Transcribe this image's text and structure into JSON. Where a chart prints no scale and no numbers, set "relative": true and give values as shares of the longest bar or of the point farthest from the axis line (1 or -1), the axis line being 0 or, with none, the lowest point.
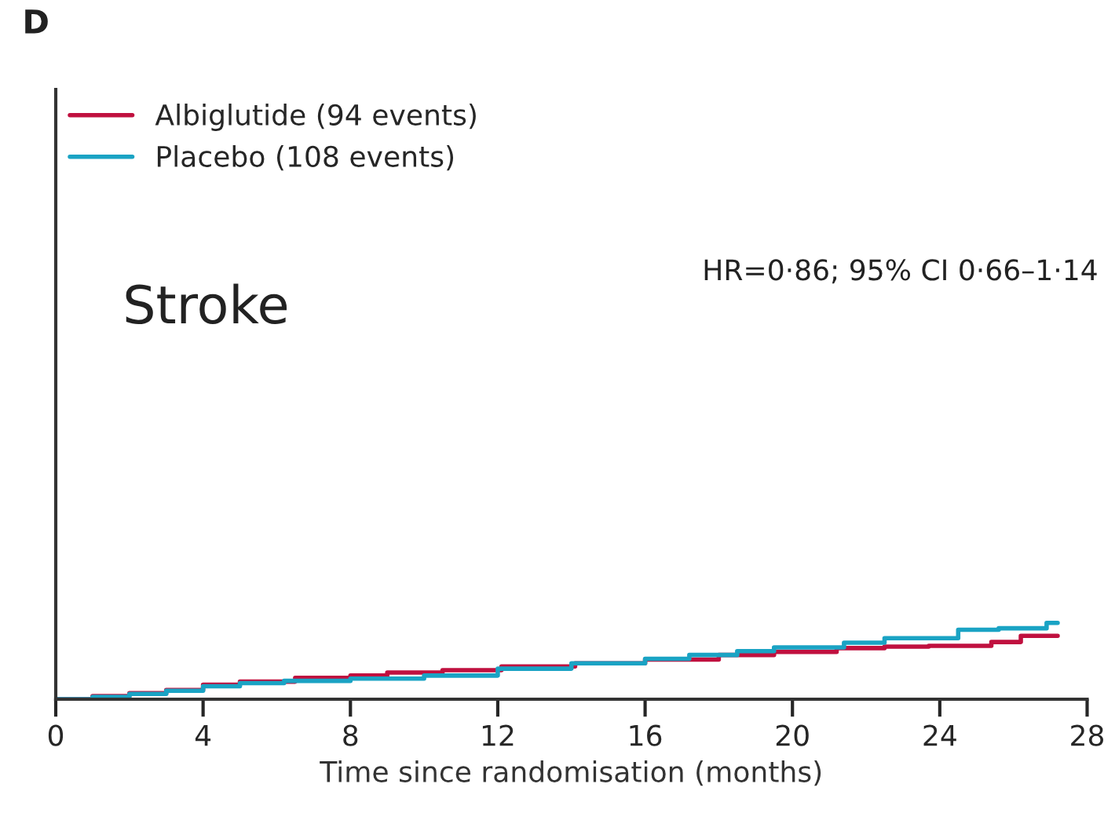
{
  "chart_data": {
    "type": "step",
    "relative": true,
    "xlabel": "Time since randomisation (months)",
    "xlim": [
      0,
      28
    ],
    "xticks": [
      0,
      4,
      8,
      12,
      16,
      20,
      24,
      28
    ],
    "legend": "top left",
    "grid": false,
    "annotations": [
      "D",
      "Stroke",
      "HR=0·86; 95% CI 0·66–1·14"
    ],
    "series": [
      {
        "name": "Albiglutide (94 events)",
        "color": "#c0103f",
        "x": [
          0,
          1,
          2,
          3,
          4,
          5,
          6.5,
          8,
          9,
          10.5,
          12.1,
          14.1,
          16,
          18,
          19.5,
          21.2,
          22.5,
          23.7,
          25.4,
          26.2,
          27.2
        ],
        "values": [
          0,
          0.04,
          0.08,
          0.12,
          0.19,
          0.23,
          0.28,
          0.31,
          0.35,
          0.38,
          0.43,
          0.47,
          0.52,
          0.58,
          0.62,
          0.67,
          0.69,
          0.7,
          0.75,
          0.83,
          0.83
        ]
      },
      {
        "name": "Placebo (108 events)",
        "color": "#1aa3c4",
        "x": [
          0,
          1,
          2,
          3,
          4,
          5,
          6.2,
          8,
          10,
          12,
          14,
          16,
          17.2,
          18.5,
          19.5,
          21.4,
          22.5,
          24.5,
          25.6,
          26.9,
          27.2
        ],
        "values": [
          0,
          0.03,
          0.07,
          0.11,
          0.17,
          0.21,
          0.24,
          0.27,
          0.31,
          0.4,
          0.47,
          0.53,
          0.58,
          0.63,
          0.68,
          0.74,
          0.8,
          0.91,
          0.93,
          1.0,
          1.0
        ]
      }
    ]
  }
}
